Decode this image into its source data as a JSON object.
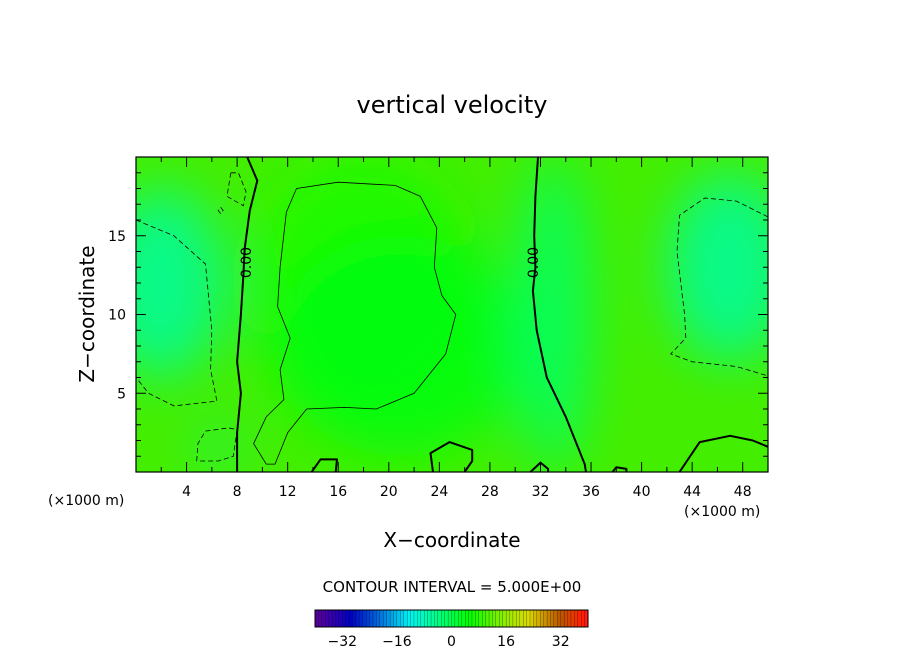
{
  "chart_data": {
    "type": "heatmap",
    "title": "vertical velocity",
    "xlabel": "X−coordinate",
    "ylabel": "Z−coordinate",
    "x_unit_left": "(×1000 m)",
    "x_unit_right": "(×1000 m)",
    "xlim": [
      0,
      50
    ],
    "ylim": [
      0,
      20
    ],
    "x_ticks": [
      4,
      8,
      12,
      16,
      20,
      24,
      28,
      32,
      36,
      40,
      44,
      48
    ],
    "y_ticks": [
      5,
      10,
      15
    ],
    "contour_label": "0.00",
    "contour_interval_text": "CONTOUR INTERVAL = 5.000E+00",
    "colorbar": {
      "min": -40,
      "max": 40,
      "ticks": [
        -32,
        -16,
        0,
        16,
        32
      ],
      "tick_labels": [
        "−32",
        "−16",
        "0",
        "16",
        "32"
      ]
    },
    "field_blobs": [
      {
        "x": 18,
        "y": 12,
        "rx": 9,
        "ry": 8,
        "value": 7
      },
      {
        "x": 21,
        "y": 8,
        "rx": 10,
        "ry": 7,
        "value": 4
      },
      {
        "x": 2,
        "y": 12,
        "rx": 5,
        "ry": 6,
        "value": -6
      },
      {
        "x": 47,
        "y": 13,
        "rx": 5,
        "ry": 6,
        "value": -6
      },
      {
        "x": 6.5,
        "y": 1.5,
        "rx": 1.5,
        "ry": 1.0,
        "value": -6
      },
      {
        "x": 33,
        "y": 10,
        "rx": 3,
        "ry": 10,
        "value": -2
      }
    ],
    "contours": [
      {
        "level": 0,
        "style": "solid",
        "width": 2,
        "points": [
          [
            8.8,
            20
          ],
          [
            9.6,
            18.5
          ],
          [
            9.0,
            16.6
          ],
          [
            8.6,
            14.2
          ],
          [
            8.5,
            12.5
          ],
          [
            8.3,
            10
          ],
          [
            8.0,
            7
          ],
          [
            8.3,
            5
          ],
          [
            8.0,
            2.5
          ],
          [
            8.0,
            0
          ]
        ]
      },
      {
        "level": 0,
        "style": "solid",
        "width": 2,
        "points": [
          [
            31.8,
            20
          ],
          [
            31.6,
            17.5
          ],
          [
            31.5,
            15
          ],
          [
            31.6,
            13
          ],
          [
            31.4,
            11.5
          ],
          [
            31.7,
            9
          ],
          [
            32.5,
            6
          ],
          [
            34.0,
            3.5
          ],
          [
            35.5,
            0.5
          ],
          [
            35.6,
            0
          ]
        ]
      },
      {
        "level": 5,
        "style": "solid",
        "width": 0.8,
        "points": [
          [
            10.3,
            0.5
          ],
          [
            9.3,
            1.8
          ],
          [
            10.3,
            3.5
          ],
          [
            11.7,
            4.6
          ],
          [
            11.4,
            6.5
          ],
          [
            12.2,
            8.5
          ],
          [
            11.2,
            10.5
          ],
          [
            11.4,
            13
          ],
          [
            11.9,
            16.5
          ],
          [
            12.7,
            18
          ],
          [
            16,
            18.4
          ],
          [
            20.5,
            18.2
          ],
          [
            22.5,
            17.5
          ],
          [
            23.8,
            15.5
          ],
          [
            23.6,
            13
          ],
          [
            24.2,
            11.2
          ],
          [
            25.3,
            10
          ],
          [
            24.5,
            7.5
          ],
          [
            22,
            5
          ],
          [
            19,
            4
          ],
          [
            16.5,
            4.1
          ],
          [
            13.5,
            4
          ],
          [
            12,
            2.5
          ],
          [
            11,
            0.5
          ],
          [
            10.3,
            0.5
          ]
        ]
      },
      {
        "level": -5,
        "style": "dashed",
        "width": 0.8,
        "points": [
          [
            0,
            16
          ],
          [
            3,
            15
          ],
          [
            5.5,
            13.2
          ],
          [
            6,
            9
          ],
          [
            5.9,
            6.5
          ],
          [
            6.4,
            4.5
          ],
          [
            3,
            4.2
          ],
          [
            1,
            5
          ],
          [
            0,
            6
          ]
        ]
      },
      {
        "level": -5,
        "style": "dashed",
        "width": 0.8,
        "points": [
          [
            50,
            16.2
          ],
          [
            47.5,
            17.2
          ],
          [
            45,
            17.4
          ],
          [
            43,
            16.3
          ],
          [
            42.8,
            14
          ],
          [
            43.4,
            10
          ],
          [
            43.5,
            8.5
          ],
          [
            42.3,
            7.5
          ],
          [
            44,
            7
          ],
          [
            47.5,
            6.7
          ],
          [
            50,
            6.1
          ]
        ]
      },
      {
        "level": -5,
        "style": "dashed",
        "width": 0.8,
        "points": [
          [
            7.5,
            19
          ],
          [
            7.2,
            17.5
          ],
          [
            8.5,
            16.9
          ],
          [
            8.7,
            17.8
          ],
          [
            8.1,
            19
          ],
          [
            7.5,
            19
          ]
        ]
      },
      {
        "level": -5,
        "style": "dashed",
        "width": 0.8,
        "points": [
          [
            6.7,
            16.4
          ],
          [
            6.5,
            16.6
          ],
          [
            6.7,
            16.8
          ],
          [
            6.9,
            16.6
          ],
          [
            6.7,
            16.4
          ]
        ]
      },
      {
        "level": -5,
        "style": "dashed",
        "width": 0.8,
        "points": [
          [
            4.8,
            0.7
          ],
          [
            4.9,
            1.8
          ],
          [
            5.5,
            2.6
          ],
          [
            7.3,
            2.8
          ],
          [
            8.0,
            2.7
          ],
          [
            7.7,
            1.0
          ],
          [
            6.5,
            0.7
          ],
          [
            4.8,
            0.7
          ]
        ]
      },
      {
        "level": 0,
        "style": "solid",
        "width": 2,
        "points": [
          [
            13.9,
            0
          ],
          [
            14.6,
            0.8
          ],
          [
            15.9,
            0.8
          ],
          [
            15.8,
            0
          ]
        ]
      },
      {
        "level": 0,
        "style": "solid",
        "width": 2,
        "points": [
          [
            23.5,
            0
          ],
          [
            23.3,
            1.2
          ],
          [
            24.8,
            1.9
          ],
          [
            26.6,
            1.4
          ],
          [
            26.6,
            0.7
          ],
          [
            26.0,
            0
          ]
        ]
      },
      {
        "level": 0,
        "style": "solid",
        "width": 2,
        "points": [
          [
            31.2,
            0
          ],
          [
            32.0,
            0.6
          ],
          [
            32.6,
            0.2
          ],
          [
            32.6,
            0
          ]
        ]
      },
      {
        "level": 0,
        "style": "solid",
        "width": 2,
        "points": [
          [
            37.7,
            0
          ],
          [
            38.0,
            0.3
          ],
          [
            38.8,
            0.2
          ],
          [
            38.8,
            0
          ]
        ]
      },
      {
        "level": 0,
        "style": "solid",
        "width": 2,
        "points": [
          [
            43.0,
            0
          ],
          [
            44.6,
            1.9
          ],
          [
            47.0,
            2.3
          ],
          [
            48.8,
            2.0
          ],
          [
            50,
            1.6
          ]
        ]
      }
    ],
    "contour_labels": [
      {
        "x": 8.8,
        "y": 13.3
      },
      {
        "x": 31.5,
        "y": 13.3
      }
    ],
    "colors": {
      "background": "#ffffff",
      "field_base": "#44ee00",
      "line": "#000000"
    }
  }
}
